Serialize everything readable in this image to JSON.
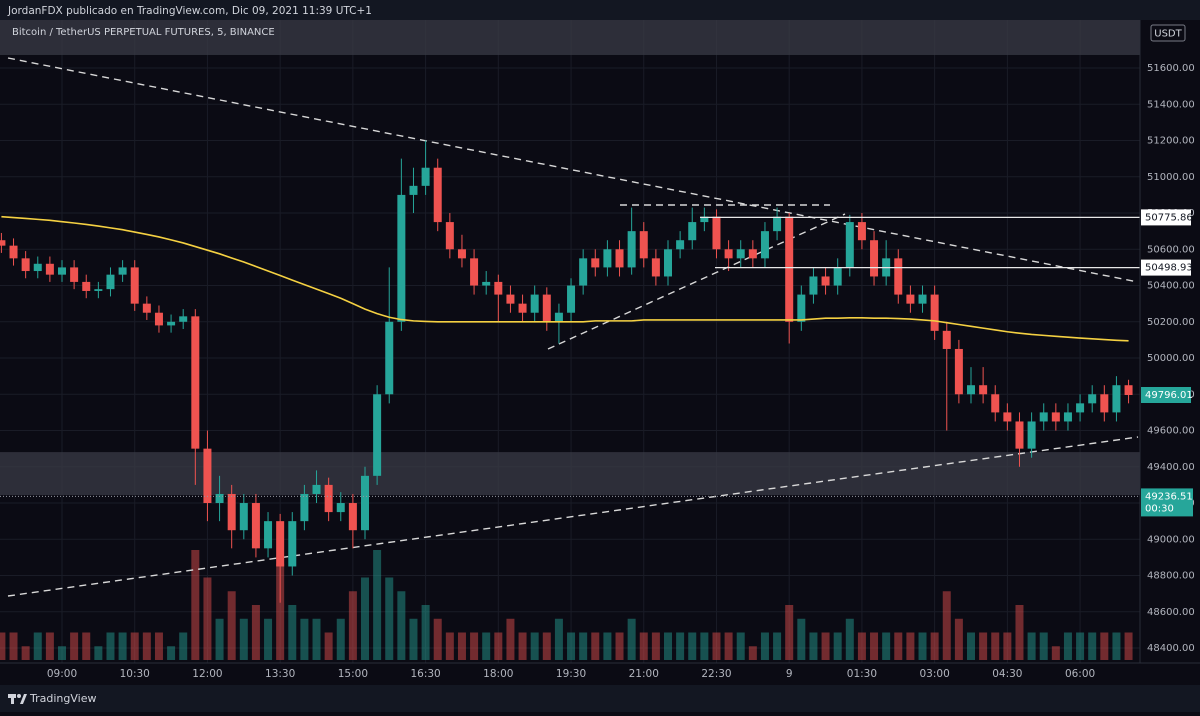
{
  "header": {
    "author_line": "JordanFDX publicado en TradingView.com, Dic 09, 2021 11:39 UTC+1",
    "brand": "TradingView"
  },
  "chart_data": {
    "type": "candlestick",
    "title": "Bitcoin / TetherUS PERPETUAL FUTURES, 5, BINANCE",
    "currency": "USDT",
    "categories": [
      null,
      null,
      null,
      null,
      null,
      "09:00",
      null,
      null,
      null,
      null,
      null,
      "10:30",
      null,
      null,
      null,
      null,
      null,
      "12:00",
      null,
      null,
      null,
      null,
      null,
      "13:30",
      null,
      null,
      null,
      null,
      null,
      "15:00",
      null,
      null,
      null,
      null,
      null,
      "16:30",
      null,
      null,
      null,
      null,
      null,
      "18:00",
      null,
      null,
      null,
      null,
      null,
      "19:30",
      null,
      null,
      null,
      null,
      null,
      "21:00",
      null,
      null,
      null,
      null,
      null,
      "22:30",
      null,
      null,
      null,
      null,
      null,
      "9",
      null,
      null,
      null,
      null,
      null,
      "01:30",
      null,
      null,
      null,
      null,
      null,
      "03:00",
      null,
      null,
      null,
      null,
      null,
      "04:30",
      null,
      null,
      null,
      null,
      null,
      "06:00",
      null,
      null,
      null,
      null
    ],
    "open": [
      50650,
      50620,
      50550,
      50480,
      50520,
      50460,
      50500,
      50420,
      50370,
      50380,
      50460,
      50500,
      50300,
      50250,
      50180,
      50200,
      50230,
      49500,
      49200,
      49250,
      49050,
      49200,
      48950,
      49100,
      48850,
      49100,
      49250,
      49300,
      49150,
      49200,
      49050,
      49350,
      49800,
      50200,
      50900,
      50950,
      51050,
      50750,
      50600,
      50550,
      50400,
      50420,
      50350,
      50300,
      50250,
      50350,
      50200,
      50250,
      50400,
      50550,
      50500,
      50600,
      50500,
      50700,
      50550,
      50450,
      50600,
      50650,
      50750,
      50780,
      50600,
      50550,
      50600,
      50550,
      50700,
      50780,
      50200,
      50350,
      50450,
      50400,
      50500,
      50750,
      50650,
      50450,
      50550,
      50350,
      50300,
      50350,
      50150,
      50050,
      49800,
      49850,
      49800,
      49700,
      49650,
      49500,
      49650,
      49700,
      49650,
      49700,
      49750,
      49800,
      49700,
      49850
    ],
    "high": [
      50690,
      50660,
      50590,
      50560,
      50560,
      50540,
      50540,
      50460,
      50420,
      50500,
      50540,
      50540,
      50340,
      50290,
      50240,
      50270,
      50270,
      49600,
      49350,
      49300,
      49250,
      49250,
      49150,
      49140,
      49150,
      49300,
      49380,
      49340,
      49260,
      49250,
      49400,
      49850,
      50500,
      51100,
      51050,
      51200,
      51100,
      50800,
      50680,
      50600,
      50480,
      50460,
      50400,
      50350,
      50400,
      50390,
      50300,
      50440,
      50600,
      50600,
      50650,
      50650,
      50830,
      50750,
      50600,
      50650,
      50700,
      50830,
      50830,
      50820,
      50650,
      50650,
      50650,
      50750,
      50830,
      50800,
      50400,
      50500,
      50500,
      50550,
      50790,
      50800,
      50700,
      50650,
      50600,
      50400,
      50400,
      50400,
      50200,
      50100,
      49950,
      49950,
      49850,
      49750,
      49700,
      49700,
      49750,
      49750,
      49750,
      49800,
      49850,
      49850,
      49900,
      49880
    ],
    "low": [
      50580,
      50510,
      50440,
      50440,
      50420,
      50420,
      50380,
      50330,
      50330,
      50340,
      50420,
      50260,
      50210,
      50140,
      50140,
      50160,
      49300,
      49100,
      49100,
      48950,
      49000,
      48900,
      48900,
      48650,
      48800,
      49050,
      49200,
      49100,
      49100,
      48950,
      49000,
      49300,
      49750,
      50150,
      50800,
      50900,
      50700,
      50550,
      50500,
      50350,
      50350,
      50200,
      50250,
      50200,
      50200,
      50150,
      50080,
      50200,
      50350,
      50450,
      50450,
      50450,
      50460,
      50500,
      50400,
      50400,
      50550,
      50600,
      50700,
      50550,
      50480,
      50500,
      50500,
      50500,
      50650,
      50080,
      50150,
      50300,
      50350,
      50350,
      50450,
      50600,
      50400,
      50400,
      50300,
      50250,
      50250,
      50100,
      49600,
      49750,
      49750,
      49750,
      49650,
      49600,
      49400,
      49450,
      49600,
      49600,
      49600,
      49650,
      49700,
      49650,
      49650,
      49750
    ],
    "close": [
      50620,
      50550,
      50480,
      50520,
      50460,
      50500,
      50420,
      50370,
      50380,
      50460,
      50500,
      50300,
      50250,
      50180,
      50200,
      50230,
      49500,
      49200,
      49250,
      49050,
      49200,
      48950,
      49100,
      48850,
      49100,
      49250,
      49300,
      49150,
      49200,
      49050,
      49350,
      49800,
      50200,
      50900,
      50950,
      51050,
      50750,
      50600,
      50550,
      50400,
      50420,
      50350,
      50300,
      50250,
      50350,
      50200,
      50250,
      50400,
      50550,
      50500,
      50600,
      50500,
      50700,
      50550,
      50450,
      50600,
      50650,
      50750,
      50780,
      50600,
      50550,
      50600,
      50550,
      50700,
      50780,
      50200,
      50350,
      50450,
      50400,
      50500,
      50750,
      50650,
      50450,
      50550,
      50350,
      50300,
      50350,
      50150,
      50050,
      49800,
      49850,
      49800,
      49700,
      49650,
      49500,
      49650,
      49700,
      49650,
      49700,
      49750,
      49800,
      49700,
      49850,
      49796.01
    ],
    "volume": [
      2,
      2,
      1,
      2,
      2,
      1,
      2,
      2,
      1,
      2,
      2,
      2,
      2,
      2,
      1,
      2,
      8,
      6,
      3,
      5,
      3,
      4,
      3,
      7,
      4,
      3,
      3,
      2,
      3,
      5,
      6,
      8,
      6,
      5,
      3,
      4,
      3,
      2,
      2,
      2,
      2,
      2,
      3,
      2,
      2,
      2,
      3,
      2,
      2,
      2,
      2,
      2,
      3,
      2,
      2,
      2,
      2,
      2,
      2,
      2,
      2,
      2,
      1,
      2,
      2,
      4,
      3,
      2,
      2,
      2,
      3,
      2,
      2,
      2,
      2,
      2,
      2,
      2,
      5,
      3,
      2,
      2,
      2,
      2,
      4,
      2,
      2,
      1,
      2,
      2,
      2,
      2,
      2,
      2
    ],
    "moving_average": {
      "color": "#f5d142",
      "values": [
        50780,
        50775,
        50770,
        50765,
        50760,
        50752,
        50745,
        50737,
        50728,
        50718,
        50708,
        50695,
        50682,
        50668,
        50652,
        50635,
        50615,
        50595,
        50575,
        50552,
        50530,
        50505,
        50480,
        50455,
        50430,
        50405,
        50380,
        50355,
        50330,
        50300,
        50270,
        50245,
        50225,
        50212,
        50205,
        50202,
        50200,
        50200,
        50200,
        50200,
        50200,
        50200,
        50200,
        50200,
        50200,
        50200,
        50200,
        50200,
        50200,
        50205,
        50205,
        50205,
        50205,
        50210,
        50210,
        50210,
        50210,
        50210,
        50210,
        50210,
        50210,
        50210,
        50210,
        50210,
        50210,
        50210,
        50210,
        50215,
        50220,
        50220,
        50222,
        50222,
        50220,
        50220,
        50218,
        50215,
        50210,
        50205,
        50195,
        50185,
        50175,
        50165,
        50155,
        50145,
        50137,
        50130,
        50125,
        50120,
        50115,
        50110,
        50106,
        50102,
        50098,
        50095
      ]
    },
    "up_color": "#26a69a",
    "down_color": "#ef5350",
    "ylim": [
      48196,
      51865
    ],
    "yticks": [
      {
        "value": 48400,
        "label": "48400.00"
      },
      {
        "value": 48600,
        "label": "48600.00"
      },
      {
        "value": 48800,
        "label": "48800.00"
      },
      {
        "value": 49000,
        "label": "49000.00"
      },
      {
        "value": 49200,
        "label": "49200.00"
      },
      {
        "value": 49400,
        "label": "49400.00"
      },
      {
        "value": 49600,
        "label": "49600.00"
      },
      {
        "value": 49800,
        "label": "49800.00"
      },
      {
        "value": 50000,
        "label": "50000.00"
      },
      {
        "value": 50200,
        "label": "50200.00"
      },
      {
        "value": 50400,
        "label": "50400.00"
      },
      {
        "value": 50600,
        "label": "50600.00"
      },
      {
        "value": 50800,
        "label": "50800.00"
      },
      {
        "value": 51000,
        "label": "51000.00"
      },
      {
        "value": 51200,
        "label": "51200.00"
      },
      {
        "value": 51400,
        "label": "51400.00"
      },
      {
        "value": 51600,
        "label": "51600.00"
      }
    ],
    "grid": true,
    "zones": [
      [
        51672,
        51865
      ],
      [
        49244,
        49481
      ]
    ],
    "price_lines": [
      {
        "value": 50775.86,
        "label": "50775.86"
      },
      {
        "value": 50498.93,
        "label": "50498.93"
      }
    ],
    "dotted_line": {
      "value": 49236.51,
      "label": "49236.51",
      "countdown": "00:30"
    }
  }
}
